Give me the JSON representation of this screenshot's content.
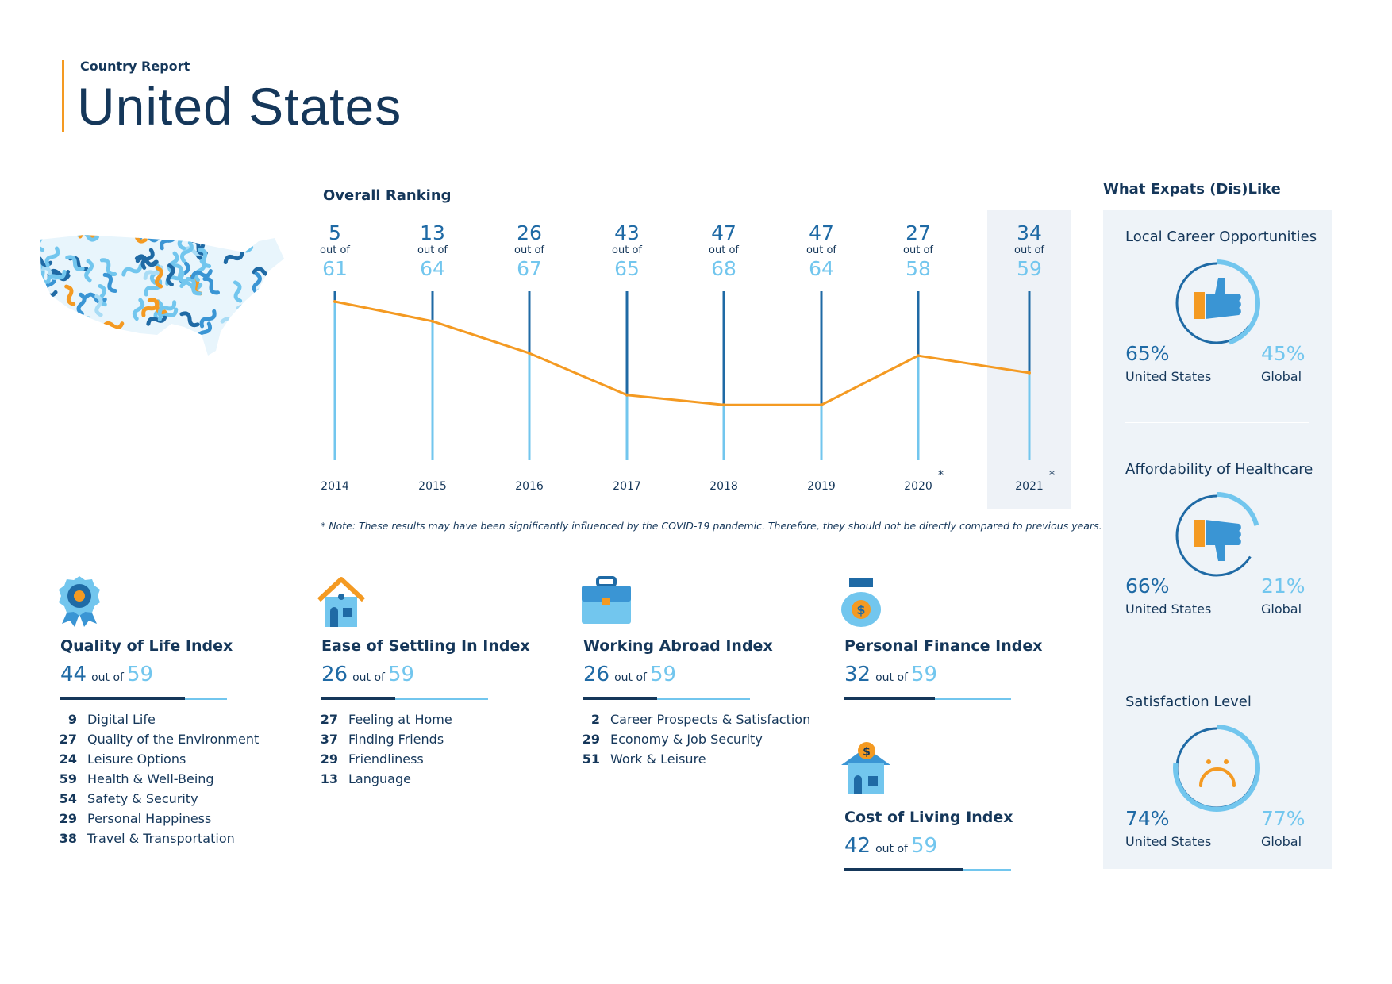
{
  "header": {
    "subtitle": "Country Report",
    "title": "United States"
  },
  "overall_ranking": {
    "heading": "Overall Ranking",
    "out_of_label": "out of",
    "note": "* Note: These results may have been significantly influenced by the COVID-19 pandemic. Therefore, they should not be directly compared to previous years.",
    "star": "*"
  },
  "chart_data": {
    "type": "line",
    "title": "Overall Ranking",
    "x": [
      "2014",
      "2015",
      "2016",
      "2017",
      "2018",
      "2019",
      "2020",
      "2021"
    ],
    "rank": [
      5,
      13,
      26,
      43,
      47,
      47,
      27,
      34
    ],
    "total": [
      61,
      64,
      67,
      65,
      68,
      64,
      58,
      59
    ],
    "starred_years": [
      "2020",
      "2021"
    ],
    "colors": {
      "line": "#f49a22",
      "stem_dark": "#1f6aa5",
      "stem_light": "#72c6ee"
    }
  },
  "indices": [
    {
      "title": "Quality of Life Index",
      "score": "44",
      "out_of": "out of",
      "total": "59",
      "score_value": 44,
      "total_value": 59,
      "icon": "medal-icon",
      "subs": [
        {
          "rank": "9",
          "label": "Digital Life"
        },
        {
          "rank": "27",
          "label": "Quality of the Environment"
        },
        {
          "rank": "24",
          "label": "Leisure Options"
        },
        {
          "rank": "59",
          "label": "Health & Well-Being"
        },
        {
          "rank": "54",
          "label": "Safety & Security"
        },
        {
          "rank": "29",
          "label": "Personal Happiness"
        },
        {
          "rank": "38",
          "label": "Travel & Transportation"
        }
      ]
    },
    {
      "title": "Ease of Settling In Index",
      "score": "26",
      "out_of": "out of",
      "total": "59",
      "score_value": 26,
      "total_value": 59,
      "icon": "house-icon",
      "subs": [
        {
          "rank": "27",
          "label": "Feeling at Home"
        },
        {
          "rank": "37",
          "label": "Finding Friends"
        },
        {
          "rank": "29",
          "label": "Friendliness"
        },
        {
          "rank": "13",
          "label": "Language"
        }
      ]
    },
    {
      "title": "Working Abroad Index",
      "score": "26",
      "out_of": "out of",
      "total": "59",
      "score_value": 26,
      "total_value": 59,
      "icon": "briefcase-icon",
      "subs": [
        {
          "rank": "2",
          "label": "Career Prospects & Satisfaction"
        },
        {
          "rank": "29",
          "label": "Economy & Job Security"
        },
        {
          "rank": "51",
          "label": "Work & Leisure"
        }
      ]
    },
    {
      "title": "Personal Finance Index",
      "score": "32",
      "out_of": "out of",
      "total": "59",
      "score_value": 32,
      "total_value": 59,
      "icon": "money-bag-icon",
      "subs": []
    },
    {
      "title": "Cost of Living Index",
      "score": "42",
      "out_of": "out of",
      "total": "59",
      "score_value": 42,
      "total_value": 59,
      "icon": "house-coin-icon",
      "subs": []
    }
  ],
  "expats": {
    "heading": "What Expats (Dis)Like",
    "items": [
      {
        "title": "Local Career Opportunities",
        "us_pct": "65%",
        "us_label": "United States",
        "global_pct": "45%",
        "global_label": "Global",
        "us_value": 65,
        "global_value": 45,
        "icon": "thumbs-up-icon"
      },
      {
        "title": "Affordability of Healthcare",
        "us_pct": "66%",
        "us_label": "United States",
        "global_pct": "21%",
        "global_label": "Global",
        "us_value": 66,
        "global_value": 21,
        "icon": "thumbs-down-icon"
      },
      {
        "title": "Satisfaction Level",
        "us_pct": "74%",
        "us_label": "United States",
        "global_pct": "77%",
        "global_label": "Global",
        "us_value": 74,
        "global_value": 77,
        "icon": "sad-face-icon"
      }
    ]
  },
  "colors": {
    "navy": "#15375a",
    "blue": "#1f6aa5",
    "light_blue": "#72c6ee",
    "orange": "#f49a22",
    "panel": "#eef3f8"
  }
}
